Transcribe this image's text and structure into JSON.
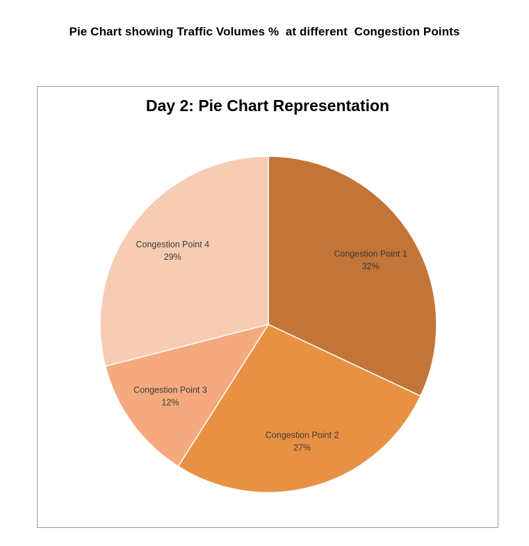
{
  "page": {
    "heading": "Pie Chart showing Traffic Volumes %  at different  Congestion Points"
  },
  "chart_data": {
    "type": "pie",
    "title": "Day 2: Pie Chart Representation",
    "start_angle_deg": 0,
    "direction": "clockwise",
    "legend": "none",
    "slices": [
      {
        "label": "Congestion Point 1",
        "value": 32,
        "display": "32%",
        "color": "#C37538"
      },
      {
        "label": "Congestion Point 2",
        "value": 27,
        "display": "27%",
        "color": "#E99143"
      },
      {
        "label": "Congestion Point 3",
        "value": 12,
        "display": "12%",
        "color": "#F4AA7E"
      },
      {
        "label": "Congestion Point 4",
        "value": 29,
        "display": "29%",
        "color": "#F7CCB3"
      }
    ]
  }
}
